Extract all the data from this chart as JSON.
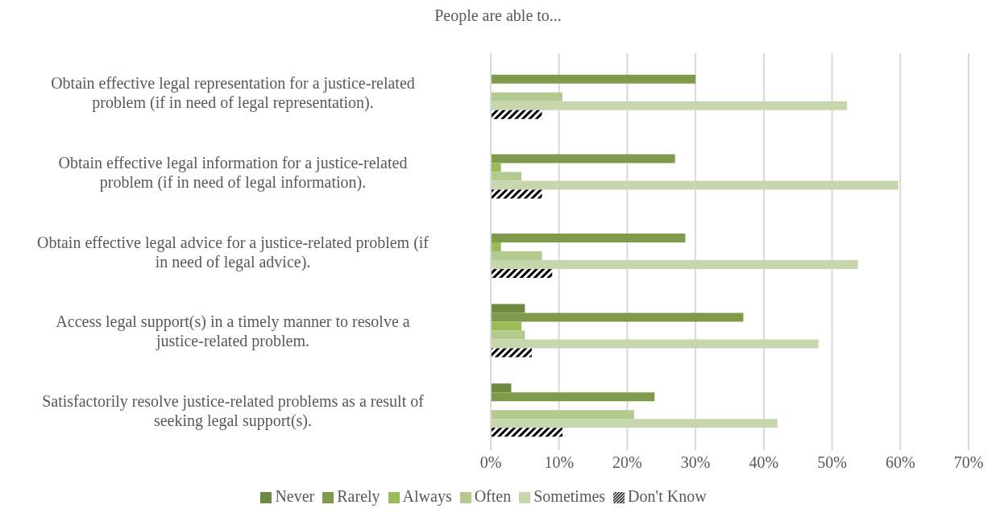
{
  "chart_data": {
    "type": "bar",
    "orientation": "horizontal",
    "title": "People are able to...",
    "categories": [
      "Obtain effective legal representation for a justice-related problem (if in need of legal representation).",
      "Obtain effective legal information for a justice-related problem (if in need of legal information).",
      "Obtain effective legal advice for a justice-related problem (if in need of legal advice).",
      "Access legal support(s) in a timely manner to resolve a justice-related problem.",
      "Satisfactorily resolve justice-related problems as a result of seeking legal support(s)."
    ],
    "series": [
      {
        "name": "Never",
        "color": "#6f8a3e",
        "values": [
          0,
          0,
          0,
          5,
          3
        ]
      },
      {
        "name": "Rarely",
        "color": "#7f9a4a",
        "values": [
          30,
          27,
          28.5,
          37,
          24
        ]
      },
      {
        "name": "Always",
        "color": "#9bbb59",
        "values": [
          0,
          1.5,
          1.5,
          4.5,
          0
        ]
      },
      {
        "name": "Often",
        "color": "#b3c98e",
        "values": [
          10.5,
          4.5,
          7.5,
          5,
          21
        ]
      },
      {
        "name": "Sometimes",
        "color": "#c6d6ad",
        "values": [
          52.2,
          59.7,
          53.8,
          48,
          42
        ]
      },
      {
        "name": "Don't Know",
        "color": "#000000",
        "values": [
          7.5,
          7.5,
          9,
          6,
          10.5
        ]
      }
    ],
    "xlim": [
      0,
      70
    ],
    "xticks": [
      {
        "value": 0,
        "label": "0%"
      },
      {
        "value": 10,
        "label": "10%"
      },
      {
        "value": 20,
        "label": "20%"
      },
      {
        "value": 30,
        "label": "30%"
      },
      {
        "value": 40,
        "label": "40%"
      },
      {
        "value": 50,
        "label": "50%"
      },
      {
        "value": 60,
        "label": "60%"
      },
      {
        "value": 70,
        "label": "70%"
      }
    ],
    "grid": "x",
    "legend": "bottom"
  }
}
